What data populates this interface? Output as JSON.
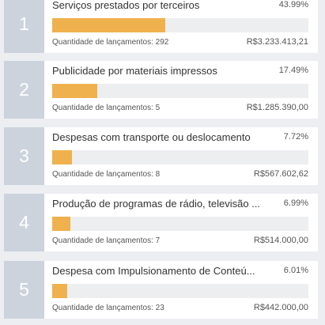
{
  "count_label": "Quantidade de lançamentos:",
  "colors": {
    "bar": "#efb14d",
    "rank_bg": "#ccd3dd",
    "track": "#eceef0"
  },
  "items": [
    {
      "rank": "1",
      "title": "Serviços prestados por terceiros",
      "percent_label": "43.99%",
      "percent": 43.99,
      "count": "292",
      "amount": "R$3.233.413,21"
    },
    {
      "rank": "2",
      "title": "Publicidade por materiais impressos",
      "percent_label": "17.49%",
      "percent": 17.49,
      "count": "5",
      "amount": "R$1.285.390,00"
    },
    {
      "rank": "3",
      "title": "Despesas com transporte ou deslocamento",
      "percent_label": "7.72%",
      "percent": 7.72,
      "count": "8",
      "amount": "R$567.602,62"
    },
    {
      "rank": "4",
      "title": "Produção de programas de rádio, televisão ...",
      "percent_label": "6.99%",
      "percent": 6.99,
      "count": "7",
      "amount": "R$514.000,00"
    },
    {
      "rank": "5",
      "title": "Despesa com Impulsionamento de Conteú...",
      "percent_label": "6.01%",
      "percent": 6.01,
      "count": "23",
      "amount": "R$442.000,00"
    }
  ]
}
